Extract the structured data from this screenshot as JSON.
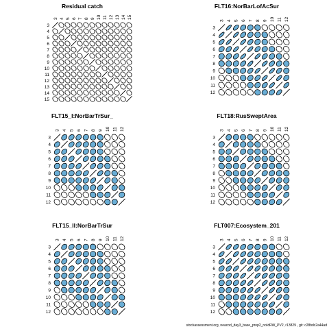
{
  "footer": "stockassessment.org, neacod_day3_base_prop2_noIdRW_PV2, r13829 , git: c28bdc2a44ad",
  "colors": {
    "positive": "#6aaed6",
    "negative": "#ffffff",
    "outline": "#000000"
  },
  "chart_data": [
    {
      "type": "correlation-ellipse-matrix",
      "title": "Residual catch",
      "ticks": [
        "3",
        "4",
        "5",
        "6",
        "7",
        "8",
        "9",
        "10",
        "11",
        "12",
        "13",
        "14",
        "15"
      ],
      "correlations": [
        [
          1,
          0,
          0,
          0,
          0,
          0,
          0,
          0,
          0,
          0,
          0,
          0,
          0
        ],
        [
          0,
          1,
          0,
          0,
          0,
          0,
          0,
          0,
          0,
          0,
          0,
          0,
          0
        ],
        [
          0,
          0,
          1,
          0,
          0,
          0,
          0,
          0,
          0,
          0,
          0,
          0,
          0
        ],
        [
          0,
          0,
          0,
          1,
          0,
          0,
          0,
          0,
          0,
          0,
          0,
          0,
          0
        ],
        [
          0,
          0,
          0,
          0,
          1,
          0,
          0,
          0,
          0,
          0,
          0,
          0,
          0
        ],
        [
          0,
          0,
          0,
          0,
          0,
          1,
          0,
          0,
          0,
          0,
          0,
          0,
          0
        ],
        [
          0,
          0,
          0,
          0,
          0,
          0,
          1,
          0,
          0,
          0,
          0,
          0,
          0
        ],
        [
          0,
          0,
          0,
          0,
          0,
          0,
          0,
          1,
          0,
          0,
          0,
          0,
          0
        ],
        [
          0,
          0,
          0,
          0,
          0,
          0,
          0,
          0,
          1,
          0,
          0,
          0,
          0
        ],
        [
          0,
          0,
          0,
          0,
          0,
          0,
          0,
          0,
          0,
          1,
          0,
          0,
          0
        ],
        [
          0,
          0,
          0,
          0,
          0,
          0,
          0,
          0,
          0,
          0,
          1,
          0,
          0
        ],
        [
          0,
          0,
          0,
          0,
          0,
          0,
          0,
          0,
          0,
          0,
          0,
          1,
          0
        ],
        [
          0,
          0,
          0,
          0,
          0,
          0,
          0,
          0,
          0,
          0,
          0,
          0,
          1
        ]
      ]
    },
    {
      "type": "correlation-ellipse-matrix",
      "title": "FLT16:NorBarLofAcSur",
      "ticks": [
        "3",
        "4",
        "5",
        "6",
        "7",
        "8",
        "9",
        "10",
        "11",
        "12"
      ],
      "correlations": [
        [
          1,
          0.85,
          0.7,
          0.5,
          0.3,
          0.15,
          0.05,
          0,
          0,
          0
        ],
        [
          0.85,
          1,
          0.85,
          0.6,
          0.45,
          0.25,
          0.1,
          0,
          0,
          0
        ],
        [
          0.7,
          0.85,
          1,
          0.8,
          0.6,
          0.4,
          0.2,
          0.05,
          0,
          0
        ],
        [
          0.5,
          0.6,
          0.8,
          1,
          0.8,
          0.6,
          0.4,
          0.2,
          0.05,
          0
        ],
        [
          0.3,
          0.45,
          0.6,
          0.8,
          1,
          0.8,
          0.6,
          0.4,
          0.2,
          0.05
        ],
        [
          0.15,
          0.25,
          0.4,
          0.6,
          0.8,
          1,
          0.8,
          0.6,
          0.4,
          0.2
        ],
        [
          0.05,
          0.1,
          0.2,
          0.4,
          0.6,
          0.8,
          1,
          0.8,
          0.6,
          0.3
        ],
        [
          0,
          0,
          0.05,
          0.2,
          0.4,
          0.6,
          0.8,
          1,
          0.8,
          0.5
        ],
        [
          0,
          0,
          0,
          0.05,
          0.2,
          0.4,
          0.6,
          0.8,
          1,
          0.7
        ],
        [
          0,
          0,
          0,
          0,
          0.05,
          0.2,
          0.3,
          0.5,
          0.7,
          1
        ]
      ]
    },
    {
      "type": "correlation-ellipse-matrix",
      "title": "FLT15_I:NorBarTrSur_",
      "ticks": [
        "3",
        "4",
        "5",
        "6",
        "7",
        "8",
        "9",
        "10",
        "11",
        "12"
      ],
      "correlations": [
        [
          1,
          0.5,
          0.5,
          0.45,
          0.35,
          0.25,
          0.1,
          0,
          0,
          0
        ],
        [
          0.5,
          1,
          0.55,
          0.5,
          0.4,
          0.3,
          0.15,
          0,
          0,
          0
        ],
        [
          0.5,
          0.55,
          1,
          0.55,
          0.45,
          0.35,
          0.2,
          0.05,
          0,
          0
        ],
        [
          0.45,
          0.5,
          0.55,
          1,
          0.55,
          0.45,
          0.3,
          0.1,
          0,
          0
        ],
        [
          0.35,
          0.4,
          0.45,
          0.55,
          1,
          0.6,
          0.45,
          0.2,
          0.05,
          0
        ],
        [
          0.25,
          0.3,
          0.35,
          0.45,
          0.6,
          1,
          0.6,
          0.35,
          0.1,
          0
        ],
        [
          0.1,
          0.15,
          0.2,
          0.3,
          0.45,
          0.6,
          1,
          0.5,
          0.2,
          0.05
        ],
        [
          0,
          0,
          0.05,
          0.1,
          0.2,
          0.35,
          0.5,
          1,
          0.35,
          0.15
        ],
        [
          0,
          0,
          0,
          0,
          0.05,
          0.1,
          0.2,
          0.35,
          1,
          0.3
        ],
        [
          0,
          0,
          0,
          0,
          0,
          0,
          0.05,
          0.15,
          0.3,
          1
        ]
      ]
    },
    {
      "type": "correlation-ellipse-matrix",
      "title": "FLT18:RusSweptArea",
      "ticks": [
        "3",
        "4",
        "5",
        "6",
        "7",
        "8",
        "9",
        "10",
        "11",
        "12"
      ],
      "correlations": [
        [
          1,
          0.35,
          0.3,
          0.2,
          0.1,
          0.05,
          0,
          0,
          0,
          0
        ],
        [
          0.35,
          1,
          0.4,
          0.3,
          0.2,
          0.1,
          0.05,
          0,
          0,
          0
        ],
        [
          0.3,
          0.4,
          1,
          0.4,
          0.3,
          0.2,
          0.1,
          0.05,
          0,
          0
        ],
        [
          0.2,
          0.3,
          0.4,
          1,
          0.45,
          0.35,
          0.2,
          0.1,
          0.05,
          0
        ],
        [
          0.1,
          0.2,
          0.3,
          0.45,
          1,
          0.45,
          0.35,
          0.25,
          0.15,
          0.05
        ],
        [
          0.05,
          0.1,
          0.2,
          0.35,
          0.45,
          1,
          0.5,
          0.4,
          0.3,
          0.15
        ],
        [
          0,
          0.05,
          0.1,
          0.2,
          0.35,
          0.5,
          1,
          0.5,
          0.4,
          0.3
        ],
        [
          0,
          0,
          0.05,
          0.1,
          0.25,
          0.4,
          0.5,
          1,
          0.5,
          0.4
        ],
        [
          0,
          0,
          0,
          0.05,
          0.15,
          0.3,
          0.4,
          0.5,
          1,
          0.5
        ],
        [
          0,
          0,
          0,
          0,
          0.05,
          0.15,
          0.3,
          0.4,
          0.5,
          1
        ]
      ]
    },
    {
      "type": "correlation-ellipse-matrix",
      "title": "FLT15_II:NorBarTrSur",
      "ticks": [
        "3",
        "4",
        "5",
        "6",
        "7",
        "8",
        "9",
        "10",
        "11",
        "12"
      ],
      "correlations": [
        [
          1,
          0.5,
          0.45,
          0.35,
          0.25,
          0.15,
          0.05,
          0,
          0,
          0
        ],
        [
          0.5,
          1,
          0.5,
          0.45,
          0.35,
          0.25,
          0.1,
          0,
          0,
          0
        ],
        [
          0.45,
          0.5,
          1,
          0.5,
          0.45,
          0.35,
          0.2,
          0.05,
          0,
          0
        ],
        [
          0.35,
          0.45,
          0.5,
          1,
          0.5,
          0.45,
          0.3,
          0.1,
          0,
          0
        ],
        [
          0.25,
          0.35,
          0.45,
          0.5,
          1,
          0.5,
          0.4,
          0.2,
          0.05,
          0
        ],
        [
          0.15,
          0.25,
          0.35,
          0.45,
          0.5,
          1,
          0.5,
          0.35,
          0.1,
          0
        ],
        [
          0.05,
          0.1,
          0.2,
          0.3,
          0.4,
          0.5,
          1,
          0.45,
          0.2,
          0.05
        ],
        [
          0,
          0,
          0.05,
          0.1,
          0.2,
          0.35,
          0.45,
          1,
          0.3,
          0.1
        ],
        [
          0,
          0,
          0,
          0,
          0.05,
          0.1,
          0.2,
          0.3,
          1,
          0.2
        ],
        [
          0,
          0,
          0,
          0,
          0,
          0,
          0.05,
          0.1,
          0.2,
          1
        ]
      ]
    },
    {
      "type": "correlation-ellipse-matrix",
      "title": "FLT007:Ecosystem_201",
      "ticks": [
        "3",
        "4",
        "5",
        "6",
        "7",
        "8",
        "9",
        "10",
        "11",
        "12"
      ],
      "correlations": [
        [
          1,
          0.75,
          0.65,
          0.55,
          0.45,
          0.35,
          0.25,
          0.15,
          0.05,
          0
        ],
        [
          0.75,
          1,
          0.75,
          0.65,
          0.55,
          0.45,
          0.35,
          0.25,
          0.15,
          0.05
        ],
        [
          0.65,
          0.75,
          1,
          0.75,
          0.65,
          0.55,
          0.45,
          0.35,
          0.25,
          0.1
        ],
        [
          0.55,
          0.65,
          0.75,
          1,
          0.8,
          0.7,
          0.6,
          0.5,
          0.35,
          0.15
        ],
        [
          0.45,
          0.55,
          0.65,
          0.8,
          1,
          0.8,
          0.7,
          0.6,
          0.45,
          0.2
        ],
        [
          0.35,
          0.45,
          0.55,
          0.7,
          0.8,
          1,
          0.8,
          0.7,
          0.5,
          0.25
        ],
        [
          0.25,
          0.35,
          0.45,
          0.6,
          0.7,
          0.8,
          1,
          0.8,
          0.6,
          0.3
        ],
        [
          0.15,
          0.25,
          0.35,
          0.5,
          0.6,
          0.7,
          0.8,
          1,
          0.7,
          0.35
        ],
        [
          0.05,
          0.15,
          0.25,
          0.35,
          0.45,
          0.5,
          0.6,
          0.7,
          1,
          0.4
        ],
        [
          0,
          0.05,
          0.1,
          0.15,
          0.2,
          0.25,
          0.3,
          0.35,
          0.4,
          1
        ]
      ]
    }
  ]
}
